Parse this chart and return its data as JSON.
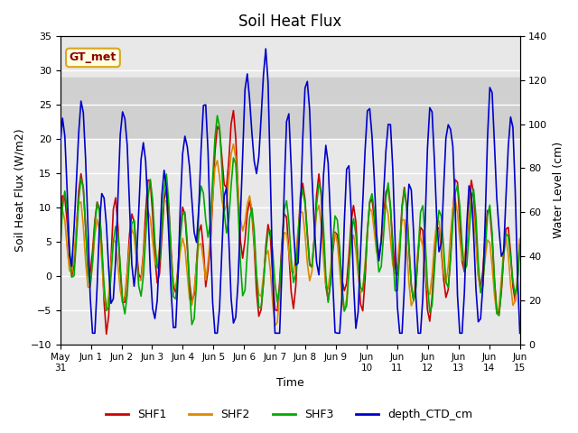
{
  "title": "Soil Heat Flux",
  "xlabel": "Time",
  "ylabel_left": "Soil Heat Flux (W/m2)",
  "ylabel_right": "Water Level (cm)",
  "ylim_left": [
    -10,
    35
  ],
  "ylim_right": [
    0,
    140
  ],
  "yticks_left": [
    -10,
    -5,
    0,
    5,
    10,
    15,
    20,
    25,
    30,
    35
  ],
  "yticks_right": [
    0,
    20,
    40,
    60,
    80,
    100,
    120,
    140
  ],
  "shf_band_low": 20,
  "shf_band_high": 29,
  "legend_labels": [
    "SHF1",
    "SHF2",
    "SHF3",
    "depth_CTD_cm"
  ],
  "colors": {
    "SHF1": "#cc0000",
    "SHF2": "#dd8800",
    "SHF3": "#00aa00",
    "depth_CTD_cm": "#0000cc"
  },
  "annotation_text": "GT_met",
  "background_color": "#ffffff",
  "plot_bg_color": "#e8e8e8",
  "band_color": "#d0d0d0",
  "grid_color": "#ffffff"
}
